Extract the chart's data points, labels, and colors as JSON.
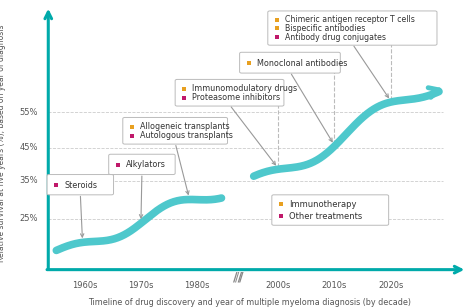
{
  "xlabel": "Timeline of drug discovery and year of multiple myeloma diagnosis (by decade)",
  "ylabel": "Relative survival at five years (%), based on year of diagnosis",
  "yticks": [
    "25%",
    "35%",
    "45%",
    "55%"
  ],
  "teal": "#00AAAA",
  "light_blue": "#4EC8CC",
  "orange": "#E8A020",
  "magenta": "#C0186A",
  "gray_line": "#AAAAAA",
  "annotation_edge": "#BBBBBB",
  "text_color": "#333333"
}
